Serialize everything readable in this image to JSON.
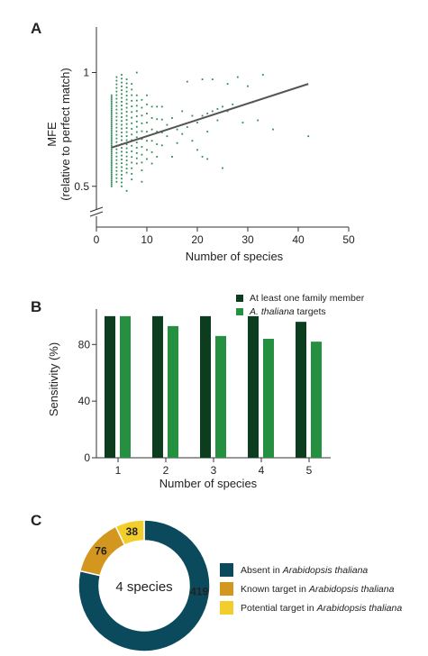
{
  "panels": {
    "a": "A",
    "b": "B",
    "c": "C"
  },
  "chart_data": [
    {
      "type": "scatter",
      "panel": "A",
      "xlabel": "Number of species",
      "ylabel_line1": "MFE",
      "ylabel_line2": "(relative to perfect match)",
      "xlim": [
        0,
        50
      ],
      "ylim": [
        0.4,
        1.2
      ],
      "axis_break": true,
      "xticks": [
        "0",
        "10",
        "20",
        "30",
        "40",
        "50"
      ],
      "yticks": [
        {
          "value": 1,
          "label": "1"
        },
        {
          "value": 0.5,
          "label": "0.5"
        }
      ],
      "point_color": "#2e8b57",
      "fit_color": "#555555",
      "fit_line": {
        "x": [
          3,
          42
        ],
        "y": [
          0.67,
          0.95
        ]
      },
      "columns": [
        {
          "x": 3,
          "ymin": 0.5,
          "ymax": 0.9,
          "n": 48
        },
        {
          "x": 4,
          "ymin": 0.52,
          "ymax": 0.98,
          "n": 30
        },
        {
          "x": 5,
          "ymin": 0.5,
          "ymax": 0.99,
          "n": 30
        },
        {
          "x": 6,
          "ymin": 0.56,
          "ymax": 0.97,
          "n": 24
        },
        {
          "x": 7,
          "ymin": 0.53,
          "ymax": 0.95,
          "n": 18
        },
        {
          "x": 8,
          "ymin": 0.6,
          "ymax": 0.9,
          "n": 14
        },
        {
          "x": 9,
          "ymin": 0.57,
          "ymax": 0.88,
          "n": 10
        },
        {
          "x": 10,
          "ymin": 0.62,
          "ymax": 0.9,
          "n": 8
        },
        {
          "x": 11,
          "ymin": 0.6,
          "ymax": 0.85,
          "n": 6
        },
        {
          "x": 12,
          "ymin": 0.63,
          "ymax": 0.85,
          "n": 5
        },
        {
          "x": 13,
          "ymin": 0.68,
          "ymax": 0.85,
          "n": 4
        }
      ],
      "points": [
        {
          "x": 14,
          "y": 0.77
        },
        {
          "x": 14,
          "y": 0.72
        },
        {
          "x": 15,
          "y": 0.8
        },
        {
          "x": 15,
          "y": 0.63
        },
        {
          "x": 16,
          "y": 0.75
        },
        {
          "x": 16,
          "y": 0.69
        },
        {
          "x": 17,
          "y": 0.83
        },
        {
          "x": 17,
          "y": 0.73
        },
        {
          "x": 18,
          "y": 0.76
        },
        {
          "x": 18,
          "y": 0.96
        },
        {
          "x": 19,
          "y": 0.81
        },
        {
          "x": 19,
          "y": 0.7
        },
        {
          "x": 20,
          "y": 0.78
        },
        {
          "x": 20,
          "y": 0.66
        },
        {
          "x": 21,
          "y": 0.81
        },
        {
          "x": 21,
          "y": 0.97
        },
        {
          "x": 22,
          "y": 0.82
        },
        {
          "x": 22,
          "y": 0.74
        },
        {
          "x": 23,
          "y": 0.83
        },
        {
          "x": 23,
          "y": 0.97
        },
        {
          "x": 24,
          "y": 0.84
        },
        {
          "x": 24,
          "y": 0.79
        },
        {
          "x": 25,
          "y": 0.85
        },
        {
          "x": 25,
          "y": 0.58
        },
        {
          "x": 26,
          "y": 0.83
        },
        {
          "x": 26,
          "y": 0.95
        },
        {
          "x": 27,
          "y": 0.86
        },
        {
          "x": 28,
          "y": 0.98
        },
        {
          "x": 29,
          "y": 0.78
        },
        {
          "x": 30,
          "y": 0.94
        },
        {
          "x": 31,
          "y": 0.87
        },
        {
          "x": 32,
          "y": 0.79
        },
        {
          "x": 33,
          "y": 0.99
        },
        {
          "x": 35,
          "y": 0.75
        },
        {
          "x": 42,
          "y": 0.72
        },
        {
          "x": 8,
          "y": 1.0
        },
        {
          "x": 6,
          "y": 0.48
        },
        {
          "x": 9,
          "y": 0.52
        },
        {
          "x": 21,
          "y": 0.63
        },
        {
          "x": 22,
          "y": 0.62
        }
      ]
    },
    {
      "type": "bar",
      "panel": "B",
      "xlabel": "Number of species",
      "ylabel": "Sensitivity (%)",
      "categories": [
        "1",
        "2",
        "3",
        "4",
        "5"
      ],
      "ylim": [
        0,
        105
      ],
      "yticks": [
        {
          "value": 80,
          "label": "80"
        },
        {
          "value": 40,
          "label": "40"
        },
        {
          "value": 0,
          "label": "0"
        }
      ],
      "series": [
        {
          "name": "At least one family member",
          "color": "#0d3d1f",
          "values": [
            100,
            100,
            100,
            100,
            96
          ]
        },
        {
          "name_italic": "A. thaliana",
          "name_rest": " targets",
          "color": "#259140",
          "values": [
            100,
            93,
            86,
            84,
            82
          ]
        }
      ]
    },
    {
      "type": "pie",
      "panel": "C",
      "center_label": "4 species",
      "slices": [
        {
          "value": 419,
          "label": "419",
          "color": "#0b4a5c",
          "legend_prefix": "Absent in ",
          "legend_italic": "Arabidopsis thaliana"
        },
        {
          "value": 76,
          "label": "76",
          "color": "#d3961e",
          "legend_prefix": "Known target in ",
          "legend_italic": "Arabidopsis thaliana"
        },
        {
          "value": 38,
          "label": "38",
          "color": "#f3cd2b",
          "legend_prefix": "Potential target in ",
          "legend_italic": "Arabidopsis thaliana"
        }
      ]
    }
  ]
}
